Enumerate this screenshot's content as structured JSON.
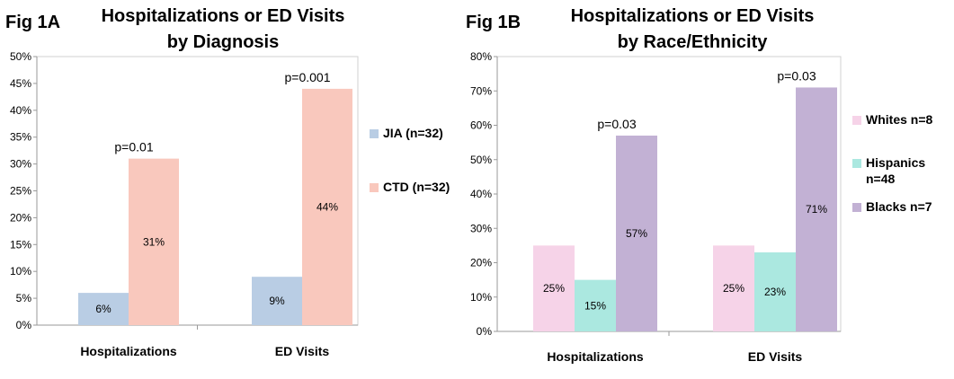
{
  "chart_data": [
    {
      "type": "bar",
      "fig_label": "Fig 1A",
      "title_lines": [
        "Hospitalizations or ED Visits",
        "by Diagnosis"
      ],
      "categories": [
        "Hospitalizations",
        "ED Visits"
      ],
      "series": [
        {
          "name": "JIA (n=32)",
          "color": "#b9cde4",
          "values": [
            6,
            9
          ],
          "labels": [
            "6%",
            "9%"
          ]
        },
        {
          "name": "CTD (n=32)",
          "color": "#f9c8bd",
          "values": [
            31,
            44
          ],
          "labels": [
            "31%",
            "44%"
          ]
        }
      ],
      "pvalues": [
        "p=0.01",
        "p=0.001"
      ],
      "ylim": [
        0,
        50
      ],
      "ytick_step": 5,
      "ytick_labels": [
        "0%",
        "5%",
        "10%",
        "15%",
        "20%",
        "25%",
        "30%",
        "35%",
        "40%",
        "45%",
        "50%"
      ],
      "legend_position": "right",
      "grid": false
    },
    {
      "type": "bar",
      "fig_label": "Fig 1B",
      "title_lines": [
        "Hospitalizations or ED Visits",
        "by Race/Ethnicity"
      ],
      "categories": [
        "Hospitalizations",
        "ED Visits"
      ],
      "series": [
        {
          "name": "Whites n=8",
          "legend_lines": [
            "Whites n=8"
          ],
          "color": "#f6d3e8",
          "values": [
            25,
            25
          ],
          "labels": [
            "25%",
            "25%"
          ]
        },
        {
          "name": "Hispanics n=48",
          "legend_lines": [
            "Hispanics",
            "n=48"
          ],
          "color": "#abe8e0",
          "values": [
            15,
            23
          ],
          "labels": [
            "15%",
            "23%"
          ]
        },
        {
          "name": "Blacks n=7",
          "legend_lines": [
            "Blacks n=7"
          ],
          "color": "#c2b1d4",
          "values": [
            57,
            71
          ],
          "labels": [
            "57%",
            "71%"
          ]
        }
      ],
      "pvalues": [
        "p=0.03",
        "p=0.03"
      ],
      "ylim": [
        0,
        80
      ],
      "ytick_step": 10,
      "ytick_labels": [
        "0%",
        "10%",
        "20%",
        "30%",
        "40%",
        "50%",
        "60%",
        "70%",
        "80%"
      ],
      "legend_position": "right",
      "grid": false
    }
  ]
}
